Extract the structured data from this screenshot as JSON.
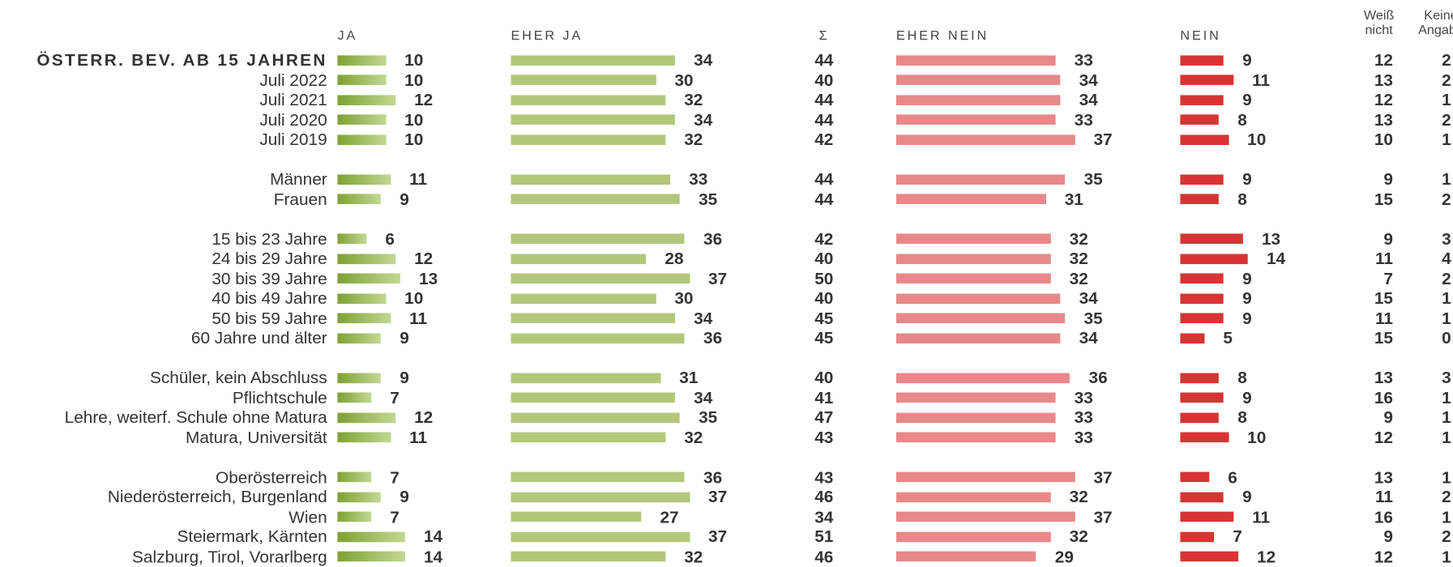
{
  "chart_data": {
    "type": "bar",
    "categories": [
      "ÖSTERR. BEV. AB 15 JAHREN",
      "Juli 2022",
      "Juli 2021",
      "Juli 2020",
      "Juli 2019",
      null,
      "Männer",
      "Frauen",
      null,
      "15 bis 23 Jahre",
      "24 bis 29 Jahre",
      "30 bis 39 Jahre",
      "40 bis 49 Jahre",
      "50 bis 59 Jahre",
      "60 Jahre und älter",
      null,
      "Schüler, kein Abschluss",
      "Pflichtschule",
      "Lehre, weiterf. Schule ohne Matura",
      "Matura, Universität",
      null,
      "Oberösterreich",
      "Niederösterreich, Burgenland",
      "Wien",
      "Steiermark, Kärnten",
      "Salzburg, Tirol, Vorarlberg"
    ],
    "series": [
      {
        "name": "JA",
        "color": "#8fb83a",
        "values": [
          10,
          10,
          12,
          10,
          10,
          null,
          11,
          9,
          null,
          6,
          12,
          13,
          10,
          11,
          9,
          null,
          9,
          7,
          12,
          11,
          null,
          7,
          9,
          7,
          14,
          14
        ]
      },
      {
        "name": "EHER JA",
        "color": "#b3c77a",
        "values": [
          34,
          30,
          32,
          34,
          32,
          null,
          33,
          35,
          null,
          36,
          28,
          37,
          30,
          34,
          36,
          null,
          31,
          34,
          35,
          32,
          null,
          36,
          37,
          27,
          37,
          32
        ]
      },
      {
        "name": "Σ",
        "values": [
          44,
          40,
          44,
          44,
          42,
          null,
          44,
          44,
          null,
          42,
          40,
          50,
          40,
          45,
          45,
          null,
          40,
          41,
          47,
          43,
          null,
          43,
          46,
          34,
          51,
          46
        ]
      },
      {
        "name": "EHER NEIN",
        "color": "#e8888a",
        "values": [
          33,
          34,
          34,
          33,
          37,
          null,
          35,
          31,
          null,
          32,
          32,
          32,
          34,
          35,
          34,
          null,
          36,
          33,
          33,
          33,
          null,
          37,
          32,
          37,
          32,
          29
        ]
      },
      {
        "name": "NEIN",
        "color": "#d83434",
        "values": [
          9,
          11,
          9,
          8,
          10,
          null,
          9,
          8,
          null,
          13,
          14,
          9,
          9,
          9,
          5,
          null,
          8,
          9,
          8,
          10,
          null,
          6,
          9,
          11,
          7,
          12
        ]
      },
      {
        "name": "Weiß nicht",
        "values": [
          12,
          13,
          12,
          13,
          10,
          null,
          9,
          15,
          null,
          9,
          11,
          7,
          15,
          11,
          15,
          null,
          13,
          16,
          9,
          12,
          null,
          13,
          11,
          16,
          9,
          12
        ]
      },
      {
        "name": "Keine Angabe",
        "values": [
          2,
          2,
          1,
          2,
          1,
          null,
          1,
          2,
          null,
          3,
          4,
          2,
          1,
          1,
          0,
          null,
          3,
          1,
          1,
          1,
          null,
          1,
          2,
          1,
          2,
          1
        ]
      }
    ]
  }
}
